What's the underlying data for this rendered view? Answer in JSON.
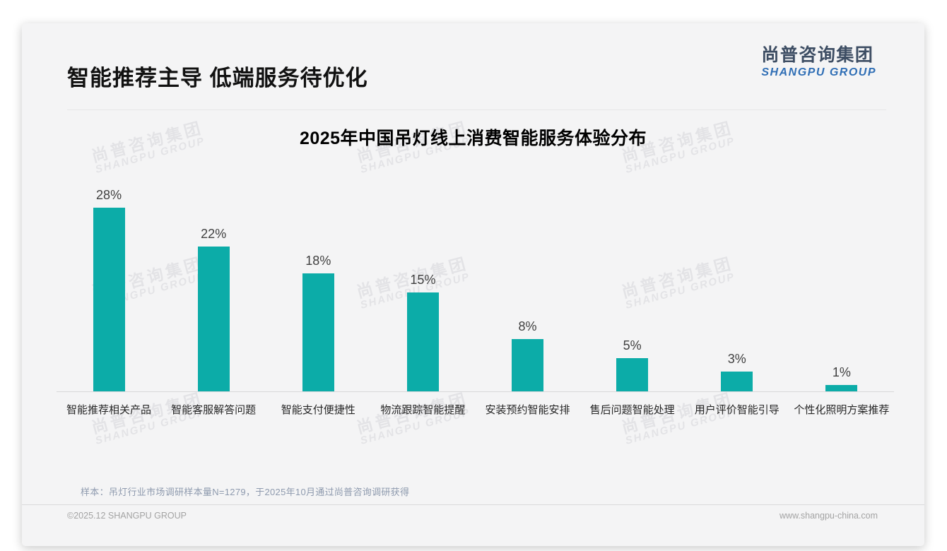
{
  "page": {
    "title": "智能推荐主导 低端服务待优化",
    "logo": {
      "cn": "尚普咨询集团",
      "en": "SHANGPU GROUP"
    },
    "watermark": {
      "cn": "尚普咨询集团",
      "en": "SHANGPU GROUP"
    },
    "sample_note": "样本：吊灯行业市场调研样本量N=1279，于2025年10月通过尚普咨询调研获得",
    "footer": {
      "copyright": "©2025.12 SHANGPU GROUP",
      "website": "www.shangpu-china.com"
    }
  },
  "chart_data": {
    "type": "bar",
    "title": "2025年中国吊灯线上消费智能服务体验分布",
    "categories": [
      "智能推荐相关产品",
      "智能客服解答问题",
      "智能支付便捷性",
      "物流跟踪智能提醒",
      "安装预约智能安排",
      "售后问题智能处理",
      "用户评价智能引导",
      "个性化照明方案推荐"
    ],
    "values": [
      28,
      22,
      18,
      15,
      8,
      5,
      3,
      1
    ],
    "value_labels": [
      "28%",
      "22%",
      "18%",
      "15%",
      "8%",
      "5%",
      "3%",
      "1%"
    ],
    "unit": "%",
    "xlabel": "",
    "ylabel": "",
    "ylim": [
      0,
      30
    ],
    "grid": false,
    "legend": false,
    "bar_color": "#0caca8"
  },
  "colors": {
    "bar": "#0caca8",
    "logo_cn": "#3d4d63",
    "logo_en": "#2f6eb5",
    "note": "#8e9aae",
    "footer_text": "#a3a3a3"
  }
}
